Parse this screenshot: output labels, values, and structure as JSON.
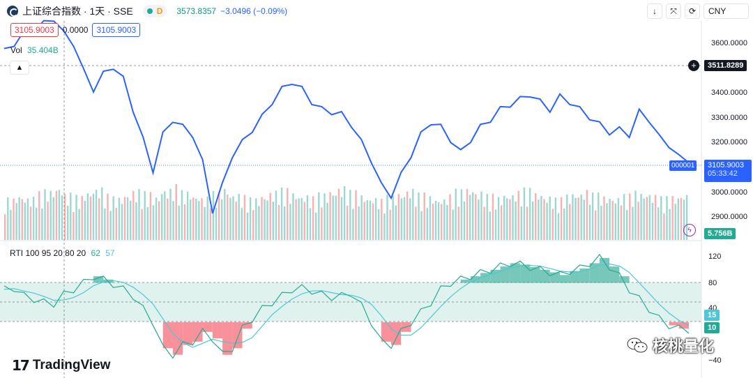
{
  "header": {
    "symbol_title": "上证综合指数 · 1天 · SSE",
    "status_letter": "D",
    "last_price": "3573.8357",
    "change": "−3.0496 (−0.09%)"
  },
  "legend": {
    "price_red": "3105.9003",
    "price_mid": "0.0000",
    "price_blue": "3105.9003",
    "vol_label": "Vol",
    "vol_value": "35.404B"
  },
  "toolbar": {
    "currency": "CNY"
  },
  "price_axis": {
    "ticks": [
      "3600.0000",
      "3400.0000",
      "3300.0000",
      "3200.0000",
      "3000.0000",
      "2900.0000"
    ],
    "crosshair_price": "3511.8289",
    "symbol_tag": "000001",
    "current_price": "3105.9003",
    "countdown": "05:33:42",
    "volume_tag": "5.756B"
  },
  "rti_panel": {
    "label": "RTI 100 95 20 80 20",
    "value_a": "62",
    "value_b": "57",
    "ticks": [
      "120",
      "80",
      "40",
      "−40"
    ],
    "tag_15": "15",
    "tag_10": "10"
  },
  "branding": {
    "logo_mark": "17",
    "logo_text": "TradingView",
    "watermark": "核桃量化"
  },
  "colors": {
    "price_line": "#2962ff",
    "vol_up": "#26a69a",
    "vol_down": "#ef5350",
    "rti_line": "#22ab94",
    "rti_signal": "#4dc7d5",
    "band_fill": "#e0f2ee"
  },
  "chart_data": [
    {
      "type": "line",
      "title": "",
      "series": [
        {
          "name": "上证综合指数",
          "values": [
            3530,
            3560,
            3600,
            3620,
            3640,
            3660,
            3600,
            3560,
            3450,
            3380,
            3440,
            3470,
            3420,
            3300,
            3180,
            3060,
            3200,
            3260,
            3230,
            3200,
            3090,
            2900,
            3000,
            3120,
            3170,
            3220,
            3270,
            3330,
            3380,
            3410,
            3380,
            3330,
            3300,
            3290,
            3280,
            3240,
            3170,
            3100,
            3000,
            2960,
            3040,
            3120,
            3200,
            3250,
            3230,
            3180,
            3130,
            3180,
            3230,
            3260,
            3300,
            3320,
            3340,
            3360,
            3330,
            3300,
            3350,
            3330,
            3300,
            3270,
            3240,
            3210,
            3220,
            3200,
            3290,
            3260,
            3190,
            3160,
            3110,
            3100
          ]
        }
      ],
      "ylim": [
        2850,
        3650
      ]
    },
    {
      "type": "bar",
      "title": "Vol",
      "series": [
        {
          "name": "Vol",
          "values": [
            35,
            38,
            36,
            40,
            42,
            45,
            39,
            37,
            41,
            44,
            38,
            36,
            39,
            42,
            40,
            37,
            43,
            46,
            41,
            38,
            36,
            40,
            44,
            39,
            37,
            35,
            38,
            41,
            43,
            40,
            38,
            36,
            39,
            42,
            45,
            41,
            38,
            36,
            34,
            37,
            40,
            43,
            39,
            37,
            35,
            38,
            42,
            44,
            41,
            38,
            36,
            39,
            41,
            43,
            40,
            37,
            35,
            38,
            40,
            42,
            39,
            37,
            36,
            38,
            41,
            40,
            38,
            36,
            37,
            39
          ]
        }
      ]
    },
    {
      "type": "line",
      "title": "RTI 100 95 20 80 20",
      "series": [
        {
          "name": "RTI",
          "values": [
            70,
            72,
            60,
            55,
            50,
            48,
            62,
            70,
            80,
            90,
            85,
            78,
            70,
            60,
            40,
            20,
            -20,
            -30,
            -15,
            -10,
            5,
            -5,
            -30,
            -20,
            10,
            25,
            40,
            50,
            60,
            70,
            72,
            68,
            62,
            58,
            60,
            64,
            45,
            20,
            -10,
            -15,
            5,
            20,
            35,
            50,
            70,
            80,
            85,
            90,
            95,
            100,
            105,
            110,
            108,
            104,
            100,
            96,
            92,
            98,
            102,
            110,
            118,
            105,
            90,
            70,
            55,
            40,
            25,
            15,
            10,
            8
          ]
        }
      ],
      "ylim": [
        -40,
        120
      ]
    }
  ]
}
